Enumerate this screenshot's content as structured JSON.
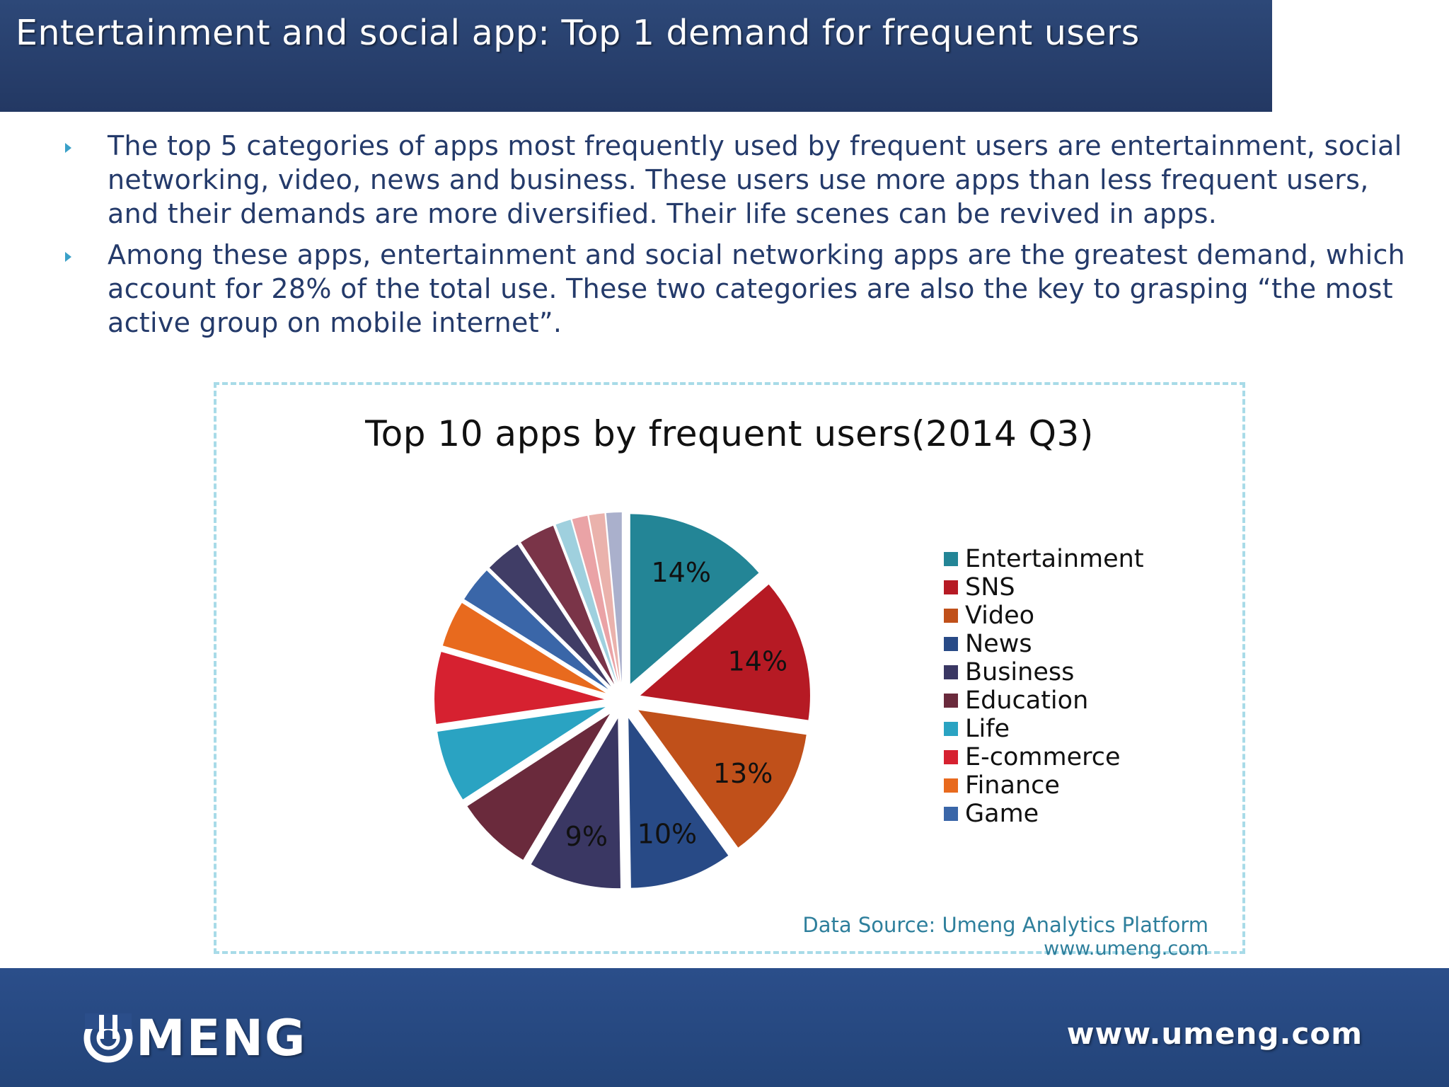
{
  "header": {
    "title": "Entertainment and social app: Top 1 demand  for frequent users"
  },
  "bullets": [
    "The top 5 categories of apps most frequently used by frequent users are entertainment, social networking, video, news and business. These users use more apps than less frequent users, and their demands are more diversified. Their life scenes can be revived in apps.",
    "Among these apps, entertainment and social networking apps are the greatest demand, which account for 28% of the total use. These two categories are also the key to grasping “the most active group on mobile internet”."
  ],
  "chart_data": {
    "type": "pie",
    "title": "Top 10 apps by frequent users(2014 Q3)",
    "slices": [
      {
        "label": "Entertainment",
        "value": 14,
        "color": "#238596",
        "data_label": "14%"
      },
      {
        "label": "SNS",
        "value": 14,
        "color": "#b61a24",
        "data_label": "14%"
      },
      {
        "label": "Video",
        "value": 13,
        "color": "#c0501a",
        "data_label": "13%"
      },
      {
        "label": "News",
        "value": 10,
        "color": "#284a86",
        "data_label": "10%"
      },
      {
        "label": "Business",
        "value": 9,
        "color": "#3a3763",
        "data_label": "9%"
      },
      {
        "label": "Education",
        "value": 7.5,
        "color": "#6a2a3c",
        "data_label": ""
      },
      {
        "label": "Life",
        "value": 7,
        "color": "#2aa3c2",
        "data_label": ""
      },
      {
        "label": "E-commerce",
        "value": 7,
        "color": "#d62130",
        "data_label": ""
      },
      {
        "label": "Finance",
        "value": 4.5,
        "color": "#e86a1e",
        "data_label": ""
      },
      {
        "label": "Game",
        "value": 3.5,
        "color": "#3a66a8",
        "data_label": ""
      },
      {
        "label": "",
        "value": 3.5,
        "color": "#403d66",
        "data_label": ""
      },
      {
        "label": "",
        "value": 3.5,
        "color": "#7a3448",
        "data_label": ""
      },
      {
        "label": "",
        "value": 1.5,
        "color": "#9fd0de",
        "data_label": ""
      },
      {
        "label": "",
        "value": 1.5,
        "color": "#eaa3a6",
        "data_label": ""
      },
      {
        "label": "",
        "value": 1.5,
        "color": "#eab2ac",
        "data_label": ""
      },
      {
        "label": "",
        "value": 1.5,
        "color": "#aab0cc",
        "data_label": ""
      }
    ],
    "legend": [
      {
        "label": "Entertainment",
        "color": "#238596"
      },
      {
        "label": "SNS",
        "color": "#b61a24"
      },
      {
        "label": "Video",
        "color": "#c0501a"
      },
      {
        "label": "News",
        "color": "#284a86"
      },
      {
        "label": "Business",
        "color": "#3a3763"
      },
      {
        "label": "Education",
        "color": "#6a2a3c"
      },
      {
        "label": "Life",
        "color": "#2aa3c2"
      },
      {
        "label": "E-commerce",
        "color": "#d62130"
      },
      {
        "label": "Finance",
        "color": "#e86a1e"
      },
      {
        "label": "Game",
        "color": "#3a66a8"
      }
    ],
    "legend_position": "right",
    "source": "Data Source: Umeng Analytics Platform",
    "source_url": "www.umeng.com"
  },
  "footer": {
    "logo_text": "MENG",
    "url": "www.umeng.com"
  }
}
